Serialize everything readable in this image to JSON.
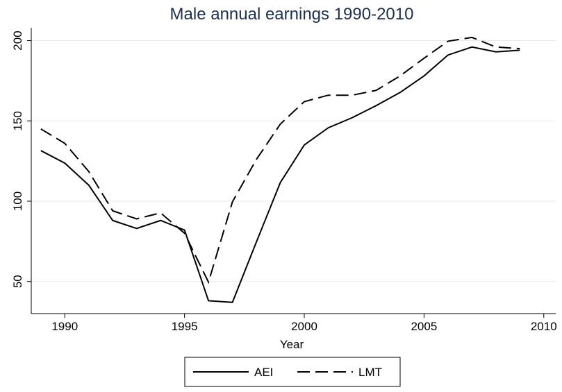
{
  "chart_data": {
    "type": "line",
    "title": "Male annual earnings 1990-2010",
    "x_label": "Year",
    "x": [
      1989,
      1990,
      1991,
      1992,
      1993,
      1994,
      1995,
      1996,
      1997,
      1998,
      1999,
      2000,
      2001,
      2002,
      2003,
      2004,
      2005,
      2006,
      2007,
      2008,
      2009
    ],
    "series": [
      {
        "name": "AEI",
        "color": "#000000",
        "style": "solid",
        "values": [
          131.5,
          123.7,
          110,
          88,
          83,
          88,
          82,
          38,
          37,
          74.6,
          111.6,
          135,
          145.7,
          152,
          159.5,
          167.7,
          178,
          191,
          196,
          193,
          194
        ]
      },
      {
        "name": "LMT",
        "color": "#000000",
        "style": "dashed",
        "values": [
          145,
          136,
          118.5,
          94,
          89,
          92.7,
          80,
          49.6,
          99.6,
          126,
          148,
          162,
          166,
          166,
          169,
          178,
          189,
          199.6,
          202,
          196,
          195
        ]
      }
    ],
    "xlim": [
      1988.6,
      2010.5
    ],
    "xticks": [
      1990,
      1995,
      2000,
      2005,
      2010
    ],
    "ylim": [
      30,
      208
    ],
    "yticks": [
      50,
      100,
      150,
      200
    ],
    "grid": true,
    "legend": "bottom"
  }
}
